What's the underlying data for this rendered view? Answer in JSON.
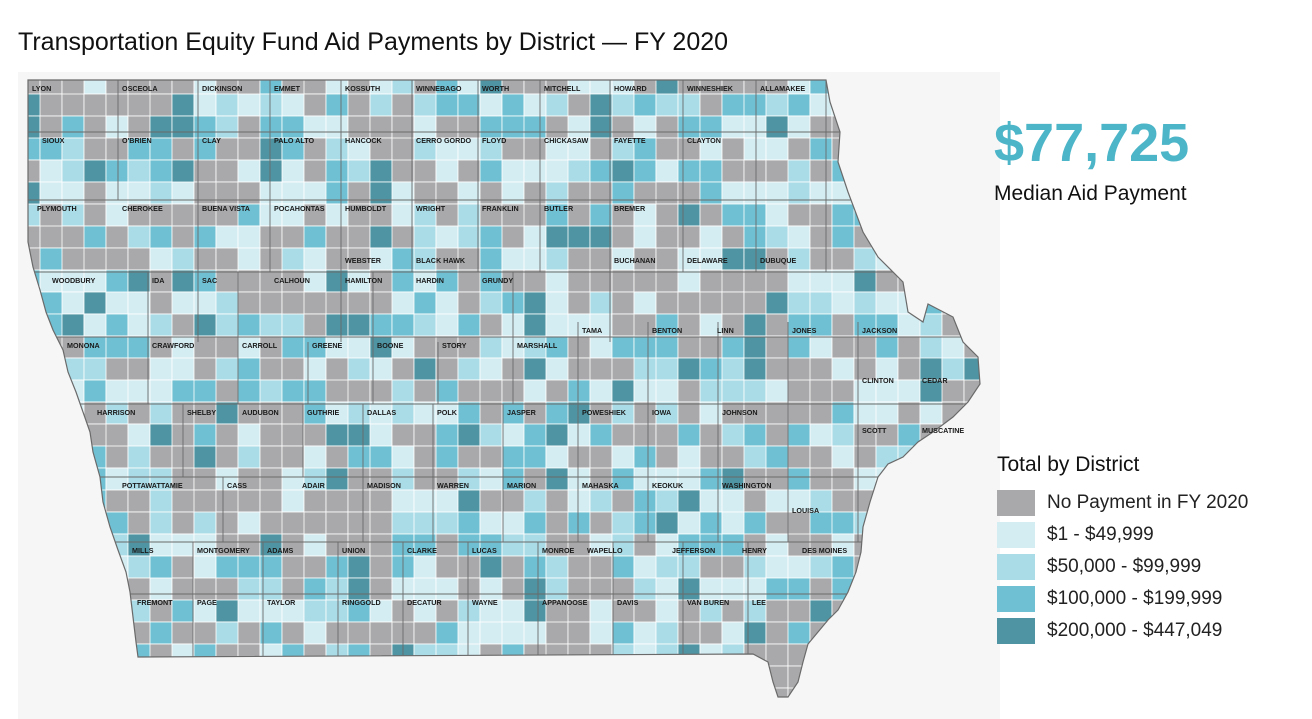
{
  "title": "Transportation Equity Fund Aid Payments by District — FY 2020",
  "kpi": {
    "value": "$77,725",
    "label": "Median Aid Payment"
  },
  "legend": {
    "title": "Total by District",
    "items": [
      {
        "label": "No Payment in FY 2020",
        "color": "#a9a9ab"
      },
      {
        "label": "$1 - $49,999",
        "color": "#d4edf3"
      },
      {
        "label": "$50,000 - $99,999",
        "color": "#a9dce7"
      },
      {
        "label": "$100,000 - $199,999",
        "color": "#6fc0d3"
      },
      {
        "label": "$200,000 - $447,049",
        "color": "#4e94a2"
      }
    ]
  },
  "colors": {
    "border": "#ffffff",
    "county_border": "#6a6a6a",
    "background": "#f6f6f6"
  },
  "counties": [
    [
      "LYON",
      "OSCEOLA",
      "DICKINSON",
      "EMMET",
      "KOSSUTH",
      "WINNEBAGO",
      "WORTH",
      "MITCHELL",
      "HOWARD",
      "WINNESHIEK",
      "ALLAMAKEE"
    ],
    [
      "SIOUX",
      "O'BRIEN",
      "CLAY",
      "PALO ALTO",
      "HANCOCK",
      "CERRO GORDO",
      "FLOYD",
      "CHICKASAW",
      "FAYETTE",
      "CLAYTON"
    ],
    [
      "PLYMOUTH",
      "CHEROKEE",
      "BUENA VISTA",
      "POCAHONTAS",
      "HUMBOLDT",
      "WRIGHT",
      "FRANKLIN",
      "BUTLER",
      "BREMER"
    ],
    [
      "WEBSTER",
      "BLACK HAWK",
      "BUCHANAN",
      "DELAWARE",
      "DUBUQUE"
    ],
    [
      "WOODBURY",
      "IDA",
      "SAC",
      "CALHOUN",
      "HAMILTON",
      "HARDIN",
      "GRUNDY"
    ],
    [
      "TAMA",
      "BENTON",
      "LINN",
      "JONES",
      "JACKSON"
    ],
    [
      "MONONA",
      "CRAWFORD",
      "CARROLL",
      "GREENE",
      "BOONE",
      "STORY",
      "MARSHALL"
    ],
    [
      "CLINTON",
      "CEDAR"
    ],
    [
      "HARRISON",
      "SHELBY",
      "AUDUBON",
      "GUTHRIE",
      "DALLAS",
      "POLK",
      "JASPER",
      "POWESHIEK",
      "IOWA",
      "JOHNSON"
    ],
    [
      "SCOTT",
      "MUSCATINE"
    ],
    [
      "POTTAWATTAMIE",
      "CASS",
      "ADAIR",
      "MADISON",
      "WARREN",
      "MARION",
      "MAHASKA",
      "KEOKUK",
      "WASHINGTON"
    ],
    [
      "LOUISA"
    ],
    [
      "MILLS",
      "MONTGOMERY",
      "ADAMS",
      "UNION",
      "CLARKE",
      "LUCAS",
      "MONROE",
      "WAPELLO",
      "JEFFERSON",
      "HENRY",
      "DES MOINES"
    ],
    [
      "FREMONT",
      "PAGE",
      "TAYLOR",
      "RINGGOLD",
      "DECATUR",
      "WAYNE",
      "APPANOOSE",
      "DAVIS",
      "VAN BUREN",
      "LEE"
    ]
  ]
}
